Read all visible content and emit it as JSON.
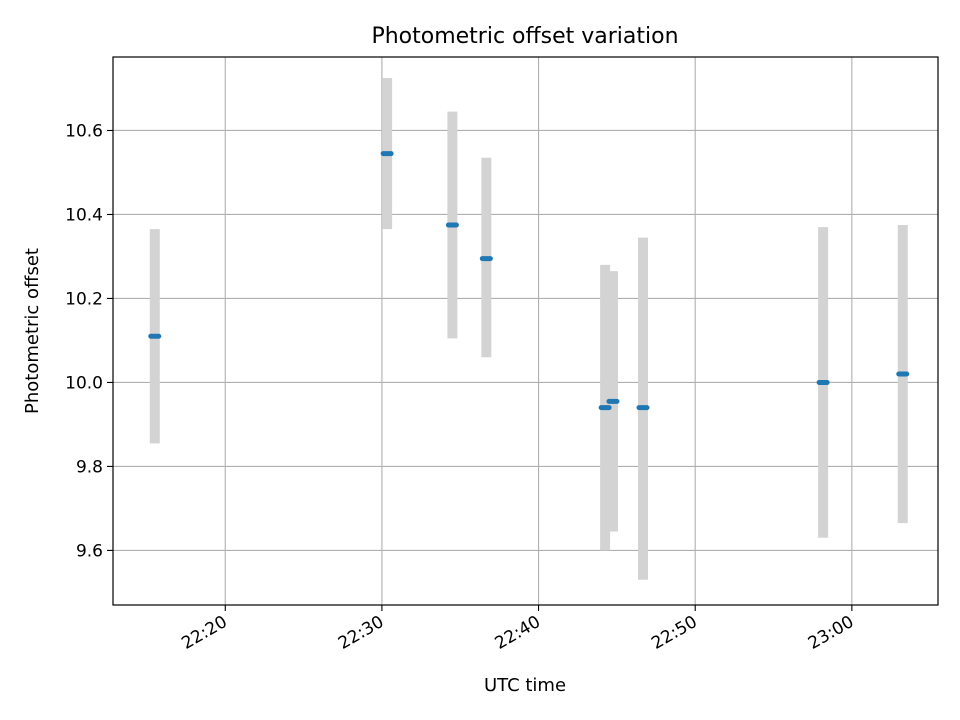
{
  "chart_data": {
    "type": "scatter",
    "title": "Photometric offset variation",
    "xlabel": "UTC time",
    "ylabel": "Photometric offset",
    "grid": true,
    "xlim": [
      "22:12:50",
      "23:05:30"
    ],
    "ylim": [
      9.47,
      10.775
    ],
    "x_ticks": [
      "22:20",
      "22:30",
      "22:40",
      "22:50",
      "23:00"
    ],
    "y_ticks": [
      9.6,
      9.8,
      10.0,
      10.2,
      10.4,
      10.6
    ],
    "y_tick_labels": [
      "9.6",
      "9.8",
      "10.0",
      "10.2",
      "10.4",
      "10.6"
    ],
    "series": [
      {
        "marker_color": "#1f77b4",
        "errorbar_color": "#d3d3d3",
        "points": [
          {
            "x": "22:15:30",
            "y": 10.11,
            "yerr_low": 9.855,
            "yerr_high": 10.365
          },
          {
            "x": "22:30:20",
            "y": 10.545,
            "yerr_low": 10.365,
            "yerr_high": 10.725
          },
          {
            "x": "22:34:30",
            "y": 10.375,
            "yerr_low": 10.105,
            "yerr_high": 10.645
          },
          {
            "x": "22:36:40",
            "y": 10.295,
            "yerr_low": 10.06,
            "yerr_high": 10.535
          },
          {
            "x": "22:44:15",
            "y": 9.94,
            "yerr_low": 9.6,
            "yerr_high": 10.28
          },
          {
            "x": "22:44:45",
            "y": 9.955,
            "yerr_low": 9.645,
            "yerr_high": 10.265
          },
          {
            "x": "22:46:40",
            "y": 9.94,
            "yerr_low": 9.53,
            "yerr_high": 10.345
          },
          {
            "x": "22:58:10",
            "y": 10.0,
            "yerr_low": 9.63,
            "yerr_high": 10.37
          },
          {
            "x": "23:03:15",
            "y": 10.02,
            "yerr_low": 9.665,
            "yerr_high": 10.375
          }
        ]
      }
    ]
  }
}
